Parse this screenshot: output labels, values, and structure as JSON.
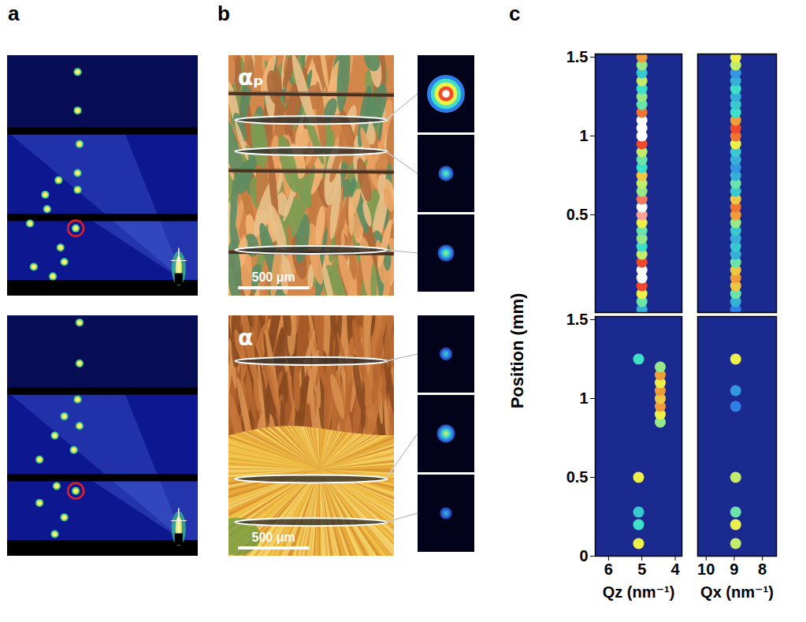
{
  "panel_labels": [
    "a",
    "b",
    "c"
  ],
  "a": {
    "patterns": [
      {
        "spots": [
          [
            0.37,
            0.07
          ],
          [
            0.37,
            0.23
          ],
          [
            0.38,
            0.37
          ],
          [
            0.37,
            0.49
          ],
          [
            0.37,
            0.56
          ],
          [
            0.27,
            0.52
          ],
          [
            0.2,
            0.58
          ],
          [
            0.21,
            0.64
          ],
          [
            0.12,
            0.7
          ],
          [
            0.36,
            0.72
          ],
          [
            0.28,
            0.8
          ],
          [
            0.3,
            0.86
          ],
          [
            0.24,
            0.92
          ],
          [
            0.14,
            0.88
          ]
        ],
        "circled": 9
      },
      {
        "spots": [
          [
            0.38,
            0.03
          ],
          [
            0.38,
            0.2
          ],
          [
            0.37,
            0.35
          ],
          [
            0.3,
            0.42
          ],
          [
            0.38,
            0.46
          ],
          [
            0.25,
            0.5
          ],
          [
            0.35,
            0.56
          ],
          [
            0.17,
            0.6
          ],
          [
            0.26,
            0.71
          ],
          [
            0.36,
            0.73
          ],
          [
            0.17,
            0.78
          ],
          [
            0.3,
            0.84
          ],
          [
            0.25,
            0.91
          ]
        ],
        "circled": 9
      }
    ]
  },
  "b": {
    "images": [
      {
        "label": "αₚ",
        "scale_bar": "500 μm",
        "insets": [
          1.0,
          0.45,
          0.5
        ]
      },
      {
        "label": "α",
        "scale_bar": "500 μm",
        "insets": [
          0.35,
          0.55,
          0.3
        ]
      }
    ]
  },
  "c": {
    "ylabel": "Position (mm)",
    "intensity_range": [
      0,
      1
    ]
  },
  "chart_data": [
    {
      "type": "heatmap",
      "xlim": [
        6.4,
        3.8
      ],
      "ylim": [
        -0.12,
        1.52
      ],
      "yticks": [
        0.5,
        1,
        1.5
      ],
      "tick_labels": "y",
      "cells": [
        {
          "position": -0.1,
          "q": 5,
          "intensity": 0.3
        },
        {
          "position": -0.05,
          "q": 5,
          "intensity": 0.45
        },
        {
          "position": 0,
          "q": 5,
          "intensity": 0.6
        },
        {
          "position": 0.05,
          "q": 5,
          "intensity": 0.8
        },
        {
          "position": 0.1,
          "q": 5,
          "intensity": 1.0
        },
        {
          "position": 0.15,
          "q": 5,
          "intensity": 1.0
        },
        {
          "position": 0.2,
          "q": 5,
          "intensity": 0.8
        },
        {
          "position": 0.25,
          "q": 5,
          "intensity": 0.55
        },
        {
          "position": 0.3,
          "q": 5,
          "intensity": 0.4
        },
        {
          "position": 0.35,
          "q": 5,
          "intensity": 0.5
        },
        {
          "position": 0.4,
          "q": 5,
          "intensity": 0.45
        },
        {
          "position": 0.45,
          "q": 5,
          "intensity": 0.6
        },
        {
          "position": 0.5,
          "q": 5,
          "intensity": 0.9
        },
        {
          "position": 0.55,
          "q": 5,
          "intensity": 1.0
        },
        {
          "position": 0.6,
          "q": 5,
          "intensity": 0.85
        },
        {
          "position": 0.65,
          "q": 5,
          "intensity": 0.5
        },
        {
          "position": 0.7,
          "q": 5,
          "intensity": 0.55
        },
        {
          "position": 0.75,
          "q": 5,
          "intensity": 0.65
        },
        {
          "position": 0.8,
          "q": 5,
          "intensity": 0.4
        },
        {
          "position": 0.85,
          "q": 5,
          "intensity": 0.45
        },
        {
          "position": 0.9,
          "q": 5,
          "intensity": 0.55
        },
        {
          "position": 0.95,
          "q": 5,
          "intensity": 0.8
        },
        {
          "position": 1.0,
          "q": 5,
          "intensity": 1.0
        },
        {
          "position": 1.05,
          "q": 5,
          "intensity": 1.0
        },
        {
          "position": 1.1,
          "q": 5,
          "intensity": 1.0
        },
        {
          "position": 1.15,
          "q": 5,
          "intensity": 0.75
        },
        {
          "position": 1.2,
          "q": 5,
          "intensity": 0.45
        },
        {
          "position": 1.25,
          "q": 5,
          "intensity": 0.5
        },
        {
          "position": 1.3,
          "q": 5,
          "intensity": 0.4
        },
        {
          "position": 1.35,
          "q": 5,
          "intensity": 0.55
        },
        {
          "position": 1.4,
          "q": 5,
          "intensity": 0.35
        },
        {
          "position": 1.45,
          "q": 5,
          "intensity": 0.5
        },
        {
          "position": 1.5,
          "q": 5,
          "intensity": 0.7
        }
      ]
    },
    {
      "type": "heatmap",
      "xlim": [
        10.3,
        7.5
      ],
      "ylim": [
        -0.12,
        1.52
      ],
      "tick_labels": false,
      "cells": [
        {
          "position": -0.1,
          "q": 8.95,
          "intensity": 0.2
        },
        {
          "position": -0.05,
          "q": 8.95,
          "intensity": 0.3
        },
        {
          "position": 0,
          "q": 8.95,
          "intensity": 0.45
        },
        {
          "position": 0.05,
          "q": 8.95,
          "intensity": 0.65
        },
        {
          "position": 0.1,
          "q": 8.95,
          "intensity": 0.7
        },
        {
          "position": 0.15,
          "q": 8.95,
          "intensity": 0.65
        },
        {
          "position": 0.2,
          "q": 8.95,
          "intensity": 0.45
        },
        {
          "position": 0.25,
          "q": 8.95,
          "intensity": 0.3
        },
        {
          "position": 0.3,
          "q": 8.95,
          "intensity": 0.35
        },
        {
          "position": 0.35,
          "q": 8.95,
          "intensity": 0.3
        },
        {
          "position": 0.4,
          "q": 8.95,
          "intensity": 0.35
        },
        {
          "position": 0.45,
          "q": 8.95,
          "intensity": 0.5
        },
        {
          "position": 0.5,
          "q": 8.95,
          "intensity": 0.7
        },
        {
          "position": 0.55,
          "q": 8.95,
          "intensity": 0.75
        },
        {
          "position": 0.6,
          "q": 8.95,
          "intensity": 0.65
        },
        {
          "position": 0.65,
          "q": 8.95,
          "intensity": 0.35
        },
        {
          "position": 0.7,
          "q": 8.95,
          "intensity": 0.45
        },
        {
          "position": 0.75,
          "q": 8.95,
          "intensity": 0.3
        },
        {
          "position": 0.8,
          "q": 8.95,
          "intensity": 0.25
        },
        {
          "position": 0.85,
          "q": 8.95,
          "intensity": 0.3
        },
        {
          "position": 0.9,
          "q": 8.95,
          "intensity": 0.35
        },
        {
          "position": 0.95,
          "q": 8.95,
          "intensity": 0.6
        },
        {
          "position": 1.0,
          "q": 8.95,
          "intensity": 0.75
        },
        {
          "position": 1.05,
          "q": 8.95,
          "intensity": 0.8
        },
        {
          "position": 1.1,
          "q": 8.95,
          "intensity": 0.7
        },
        {
          "position": 1.15,
          "q": 8.95,
          "intensity": 0.4
        },
        {
          "position": 1.2,
          "q": 8.95,
          "intensity": 0.35
        },
        {
          "position": 1.25,
          "q": 8.95,
          "intensity": 0.3
        },
        {
          "position": 1.3,
          "q": 8.95,
          "intensity": 0.4
        },
        {
          "position": 1.35,
          "q": 8.95,
          "intensity": 0.3
        },
        {
          "position": 1.4,
          "q": 8.95,
          "intensity": 0.25
        },
        {
          "position": 1.45,
          "q": 8.95,
          "intensity": 0.55
        },
        {
          "position": 1.5,
          "q": 8.95,
          "intensity": 0.6
        }
      ]
    },
    {
      "type": "heatmap",
      "xlabel": "Qz (nm⁻¹)",
      "xlim": [
        6.4,
        3.8
      ],
      "ylim": [
        0,
        1.52
      ],
      "xticks": [
        6,
        5,
        4
      ],
      "yticks": [
        0,
        0.5,
        1,
        1.5
      ],
      "cells": [
        {
          "position": 0.08,
          "q": 5.1,
          "intensity": 0.6
        },
        {
          "position": 0.2,
          "q": 5.1,
          "intensity": 0.4
        },
        {
          "position": 0.28,
          "q": 5.1,
          "intensity": 0.35
        },
        {
          "position": 0.5,
          "q": 5.1,
          "intensity": 0.6
        },
        {
          "position": 1.25,
          "q": 5.1,
          "intensity": 0.4
        },
        {
          "position": 0.85,
          "q": 4.45,
          "intensity": 0.5
        },
        {
          "position": 0.9,
          "q": 4.45,
          "intensity": 0.6
        },
        {
          "position": 0.95,
          "q": 4.45,
          "intensity": 0.7
        },
        {
          "position": 1.0,
          "q": 4.45,
          "intensity": 0.65
        },
        {
          "position": 1.05,
          "q": 4.45,
          "intensity": 0.7
        },
        {
          "position": 1.1,
          "q": 4.45,
          "intensity": 0.6
        },
        {
          "position": 1.15,
          "q": 4.45,
          "intensity": 0.7
        },
        {
          "position": 1.2,
          "q": 4.45,
          "intensity": 0.5
        }
      ]
    },
    {
      "type": "heatmap",
      "xlabel": "Qx (nm⁻¹)",
      "xlim": [
        10.3,
        7.5
      ],
      "ylim": [
        0,
        1.52
      ],
      "xticks": [
        10,
        9,
        8
      ],
      "tick_labels": "x",
      "cells": [
        {
          "position": 0.08,
          "q": 8.95,
          "intensity": 0.55
        },
        {
          "position": 0.2,
          "q": 8.95,
          "intensity": 0.6
        },
        {
          "position": 0.28,
          "q": 8.95,
          "intensity": 0.45
        },
        {
          "position": 0.5,
          "q": 8.95,
          "intensity": 0.55
        },
        {
          "position": 1.25,
          "q": 8.95,
          "intensity": 0.6
        },
        {
          "position": 0.95,
          "q": 8.95,
          "intensity": 0.2
        },
        {
          "position": 1.05,
          "q": 8.95,
          "intensity": 0.25
        }
      ]
    }
  ]
}
